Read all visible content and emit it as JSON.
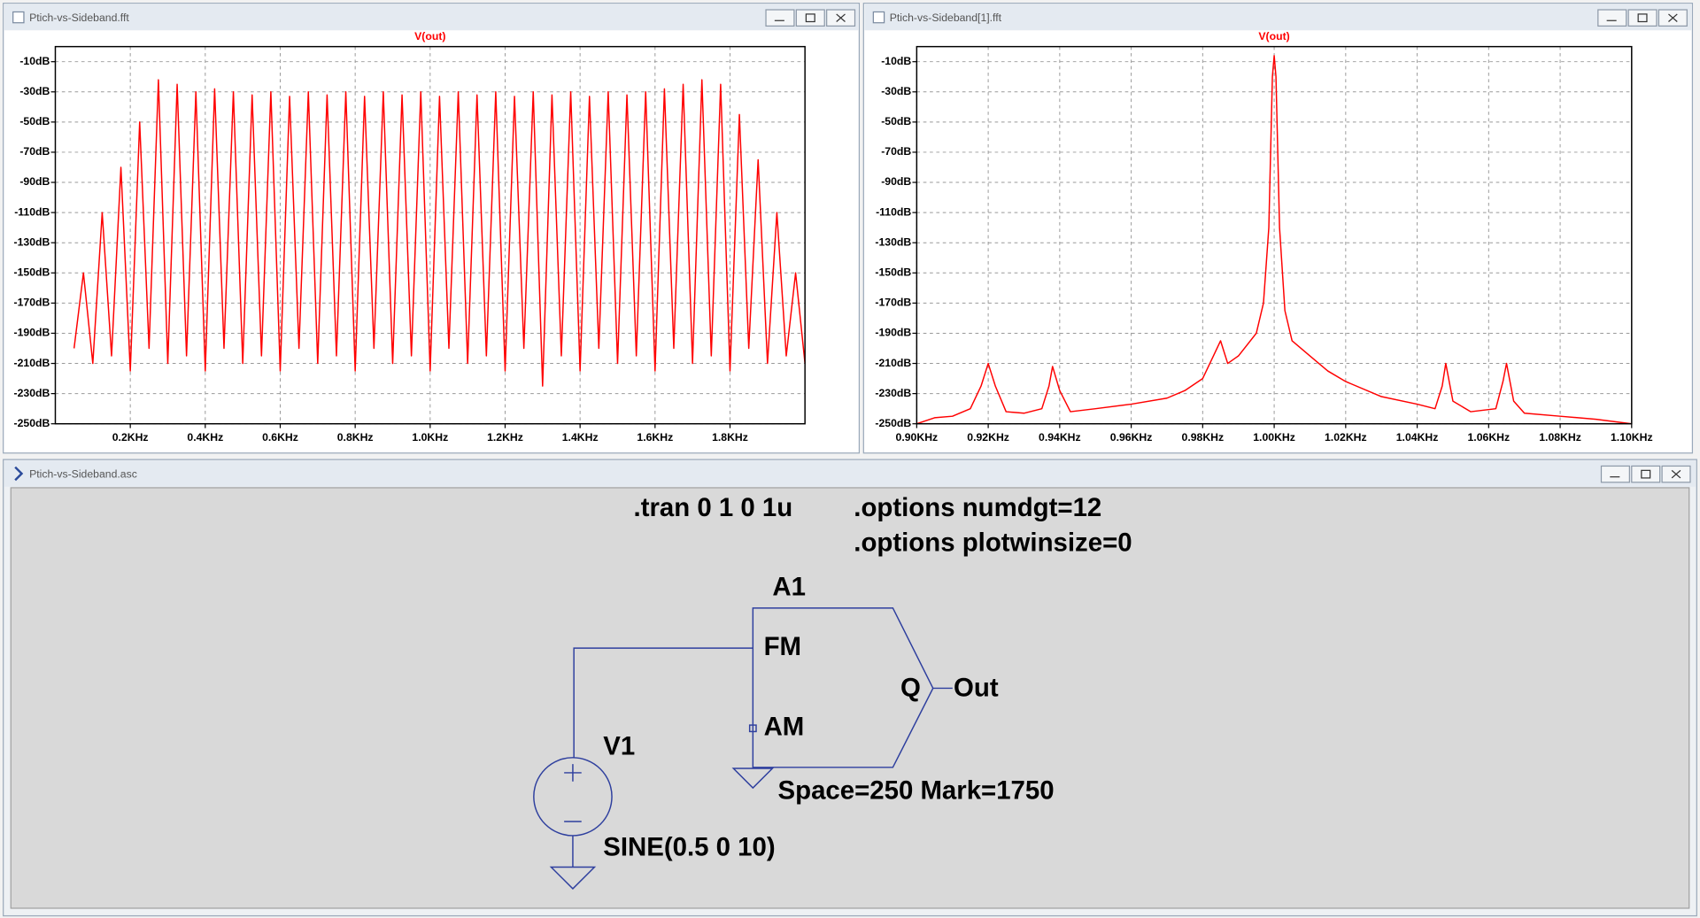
{
  "windows": [
    {
      "title": "Ptich-vs-Sideband.fft"
    },
    {
      "title": "Ptich-vs-Sideband[1].fft"
    },
    {
      "title": "Ptich-vs-Sideband.asc"
    }
  ],
  "chart_data": [
    {
      "type": "line",
      "grid": true,
      "x": [
        50,
        75,
        100,
        125,
        150,
        175,
        200,
        225,
        250,
        275,
        300,
        325,
        350,
        375,
        400,
        425,
        450,
        475,
        500,
        525,
        550,
        575,
        600,
        625,
        650,
        675,
        700,
        725,
        750,
        775,
        800,
        825,
        850,
        875,
        900,
        925,
        950,
        975,
        1000,
        1025,
        1050,
        1075,
        1100,
        1125,
        1150,
        1175,
        1200,
        1225,
        1250,
        1275,
        1300,
        1325,
        1350,
        1375,
        1400,
        1425,
        1450,
        1475,
        1500,
        1525,
        1550,
        1575,
        1600,
        1625,
        1650,
        1675,
        1700,
        1725,
        1750,
        1775,
        1800,
        1825,
        1850,
        1875,
        1900,
        1925,
        1950,
        1975,
        2000
      ],
      "series": [
        {
          "name": "V(out)",
          "color": "#ff0000",
          "values": [
            -200,
            -150,
            -210,
            -110,
            -205,
            -80,
            -215,
            -50,
            -200,
            -22,
            -210,
            -25,
            -205,
            -30,
            -215,
            -28,
            -200,
            -30,
            -210,
            -32,
            -205,
            -30,
            -215,
            -33,
            -200,
            -30,
            -210,
            -32,
            -205,
            -30,
            -215,
            -33,
            -200,
            -30,
            -210,
            -32,
            -205,
            -30,
            -215,
            -33,
            -200,
            -30,
            -210,
            -32,
            -205,
            -30,
            -215,
            -33,
            -200,
            -30,
            -225,
            -32,
            -205,
            -30,
            -215,
            -33,
            -200,
            -30,
            -210,
            -32,
            -205,
            -30,
            -215,
            -28,
            -200,
            -25,
            -210,
            -22,
            -205,
            -25,
            -215,
            -45,
            -200,
            -75,
            -210,
            -110,
            -205,
            -150,
            -210
          ]
        }
      ],
      "xlim": [
        0,
        2000
      ],
      "xticks": [
        {
          "value": 200,
          "label": "0.2KHz"
        },
        {
          "value": 400,
          "label": "0.4KHz"
        },
        {
          "value": 600,
          "label": "0.6KHz"
        },
        {
          "value": 800,
          "label": "0.8KHz"
        },
        {
          "value": 1000,
          "label": "1.0KHz"
        },
        {
          "value": 1200,
          "label": "1.2KHz"
        },
        {
          "value": 1400,
          "label": "1.4KHz"
        },
        {
          "value": 1600,
          "label": "1.6KHz"
        },
        {
          "value": 1800,
          "label": "1.8KHz"
        }
      ],
      "ylim": [
        -250,
        0
      ],
      "yticks": [
        {
          "value": -10,
          "label": "-10dB"
        },
        {
          "value": -30,
          "label": "-30dB"
        },
        {
          "value": -50,
          "label": "-50dB"
        },
        {
          "value": -70,
          "label": "-70dB"
        },
        {
          "value": -90,
          "label": "-90dB"
        },
        {
          "value": -110,
          "label": "-110dB"
        },
        {
          "value": -130,
          "label": "-130dB"
        },
        {
          "value": -150,
          "label": "-150dB"
        },
        {
          "value": -170,
          "label": "-170dB"
        },
        {
          "value": -190,
          "label": "-190dB"
        },
        {
          "value": -210,
          "label": "-210dB"
        },
        {
          "value": -230,
          "label": "-230dB"
        },
        {
          "value": -250,
          "label": "-250dB"
        }
      ]
    },
    {
      "type": "line",
      "grid": true,
      "x": [
        900,
        905,
        910,
        915,
        918,
        920,
        922,
        925,
        930,
        935,
        937,
        938,
        940,
        943,
        950,
        960,
        970,
        975,
        980,
        983,
        985,
        987,
        990,
        995,
        997,
        998.5,
        999.5,
        1000,
        1000.5,
        1001.5,
        1003,
        1005,
        1010,
        1015,
        1020,
        1030,
        1040,
        1045,
        1047,
        1048,
        1050,
        1055,
        1062,
        1064,
        1065,
        1067,
        1070,
        1080,
        1090,
        1100
      ],
      "series": [
        {
          "name": "V(out)",
          "color": "#ff0000",
          "values": [
            -250,
            -246,
            -245,
            -240,
            -225,
            -210,
            -225,
            -242,
            -243,
            -240,
            -225,
            -212,
            -228,
            -242,
            -240,
            -237,
            -233,
            -228,
            -220,
            -205,
            -195,
            -210,
            -205,
            -190,
            -170,
            -120,
            -20,
            -6,
            -20,
            -120,
            -175,
            -195,
            -205,
            -215,
            -222,
            -232,
            -237,
            -240,
            -225,
            -210,
            -235,
            -242,
            -240,
            -222,
            -210,
            -235,
            -243,
            -245,
            -247,
            -250
          ]
        }
      ],
      "xlim": [
        900,
        1100
      ],
      "xticks": [
        {
          "value": 900,
          "label": "0.90KHz"
        },
        {
          "value": 920,
          "label": "0.92KHz"
        },
        {
          "value": 940,
          "label": "0.94KHz"
        },
        {
          "value": 960,
          "label": "0.96KHz"
        },
        {
          "value": 980,
          "label": "0.98KHz"
        },
        {
          "value": 1000,
          "label": "1.00KHz"
        },
        {
          "value": 1020,
          "label": "1.02KHz"
        },
        {
          "value": 1040,
          "label": "1.04KHz"
        },
        {
          "value": 1060,
          "label": "1.06KHz"
        },
        {
          "value": 1080,
          "label": "1.08KHz"
        },
        {
          "value": 1100,
          "label": "1.10KHz"
        }
      ],
      "ylim": [
        -250,
        0
      ],
      "yticks": [
        {
          "value": -10,
          "label": "-10dB"
        },
        {
          "value": -30,
          "label": "-30dB"
        },
        {
          "value": -50,
          "label": "-50dB"
        },
        {
          "value": -70,
          "label": "-70dB"
        },
        {
          "value": -90,
          "label": "-90dB"
        },
        {
          "value": -110,
          "label": "-110dB"
        },
        {
          "value": -130,
          "label": "-130dB"
        },
        {
          "value": -150,
          "label": "-150dB"
        },
        {
          "value": -170,
          "label": "-170dB"
        },
        {
          "value": -190,
          "label": "-190dB"
        },
        {
          "value": -210,
          "label": "-210dB"
        },
        {
          "value": -230,
          "label": "-230dB"
        },
        {
          "value": -250,
          "label": "-250dB"
        }
      ]
    }
  ],
  "schematic": {
    "tran": ".tran 0 1 0 1u",
    "option1": ".options numdgt=12",
    "option2": ".options plotwinsize=0",
    "a1": "A1",
    "fm": "FM",
    "am": "AM",
    "q": "Q",
    "out": "Out",
    "v1": "V1",
    "sine": "SINE(0.5 0 10)",
    "params": "Space=250 Mark=1750"
  }
}
